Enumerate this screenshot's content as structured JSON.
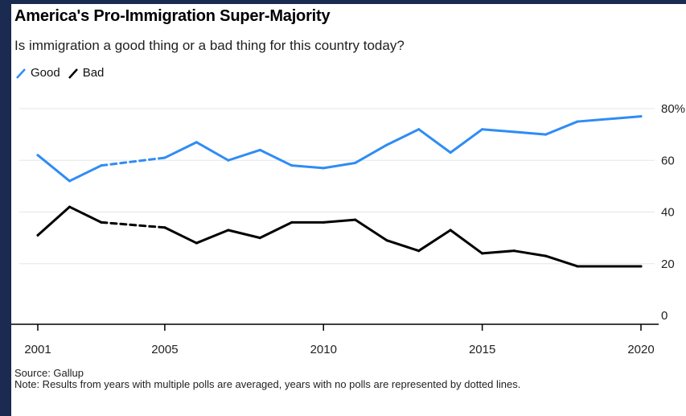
{
  "header": {
    "title": "America's Pro-Immigration Super-Majority",
    "subtitle": "Is immigration a good thing or a bad thing for this country today?"
  },
  "legend": [
    {
      "label": "Good",
      "color": "#2f8cf5"
    },
    {
      "label": "Bad",
      "color": "#000000"
    }
  ],
  "footer": {
    "source": "Source: Gallup",
    "note": "Note: Results from years with multiple polls are averaged, years with no polls are represented by dotted lines."
  },
  "chart_data": {
    "type": "line",
    "x": [
      2001,
      2002,
      2003,
      2004,
      2005,
      2006,
      2007,
      2008,
      2009,
      2010,
      2011,
      2012,
      2013,
      2014,
      2015,
      2016,
      2017,
      2018,
      2019,
      2020
    ],
    "series": [
      {
        "name": "Good",
        "color": "#2f8cf5",
        "values": [
          62,
          52,
          58,
          null,
          61,
          67,
          60,
          64,
          58,
          57,
          59,
          66,
          72,
          63,
          72,
          71,
          70,
          75,
          null,
          77
        ],
        "dotted_segments": [
          [
            2003,
            2005
          ]
        ]
      },
      {
        "name": "Bad",
        "color": "#000000",
        "values": [
          31,
          42,
          36,
          null,
          34,
          28,
          33,
          30,
          36,
          36,
          37,
          29,
          25,
          33,
          24,
          25,
          23,
          19,
          null,
          19
        ],
        "dotted_segments": [
          [
            2003,
            2005
          ]
        ]
      }
    ],
    "x_ticks": [
      "2001",
      "2005",
      "2010",
      "2015",
      "2020"
    ],
    "y_ticks": [
      "0",
      "20",
      "40",
      "60",
      "80%"
    ],
    "ylim": [
      0,
      80
    ],
    "xlim": [
      2001,
      2020
    ],
    "grid": true,
    "legend_position": "top-left"
  }
}
